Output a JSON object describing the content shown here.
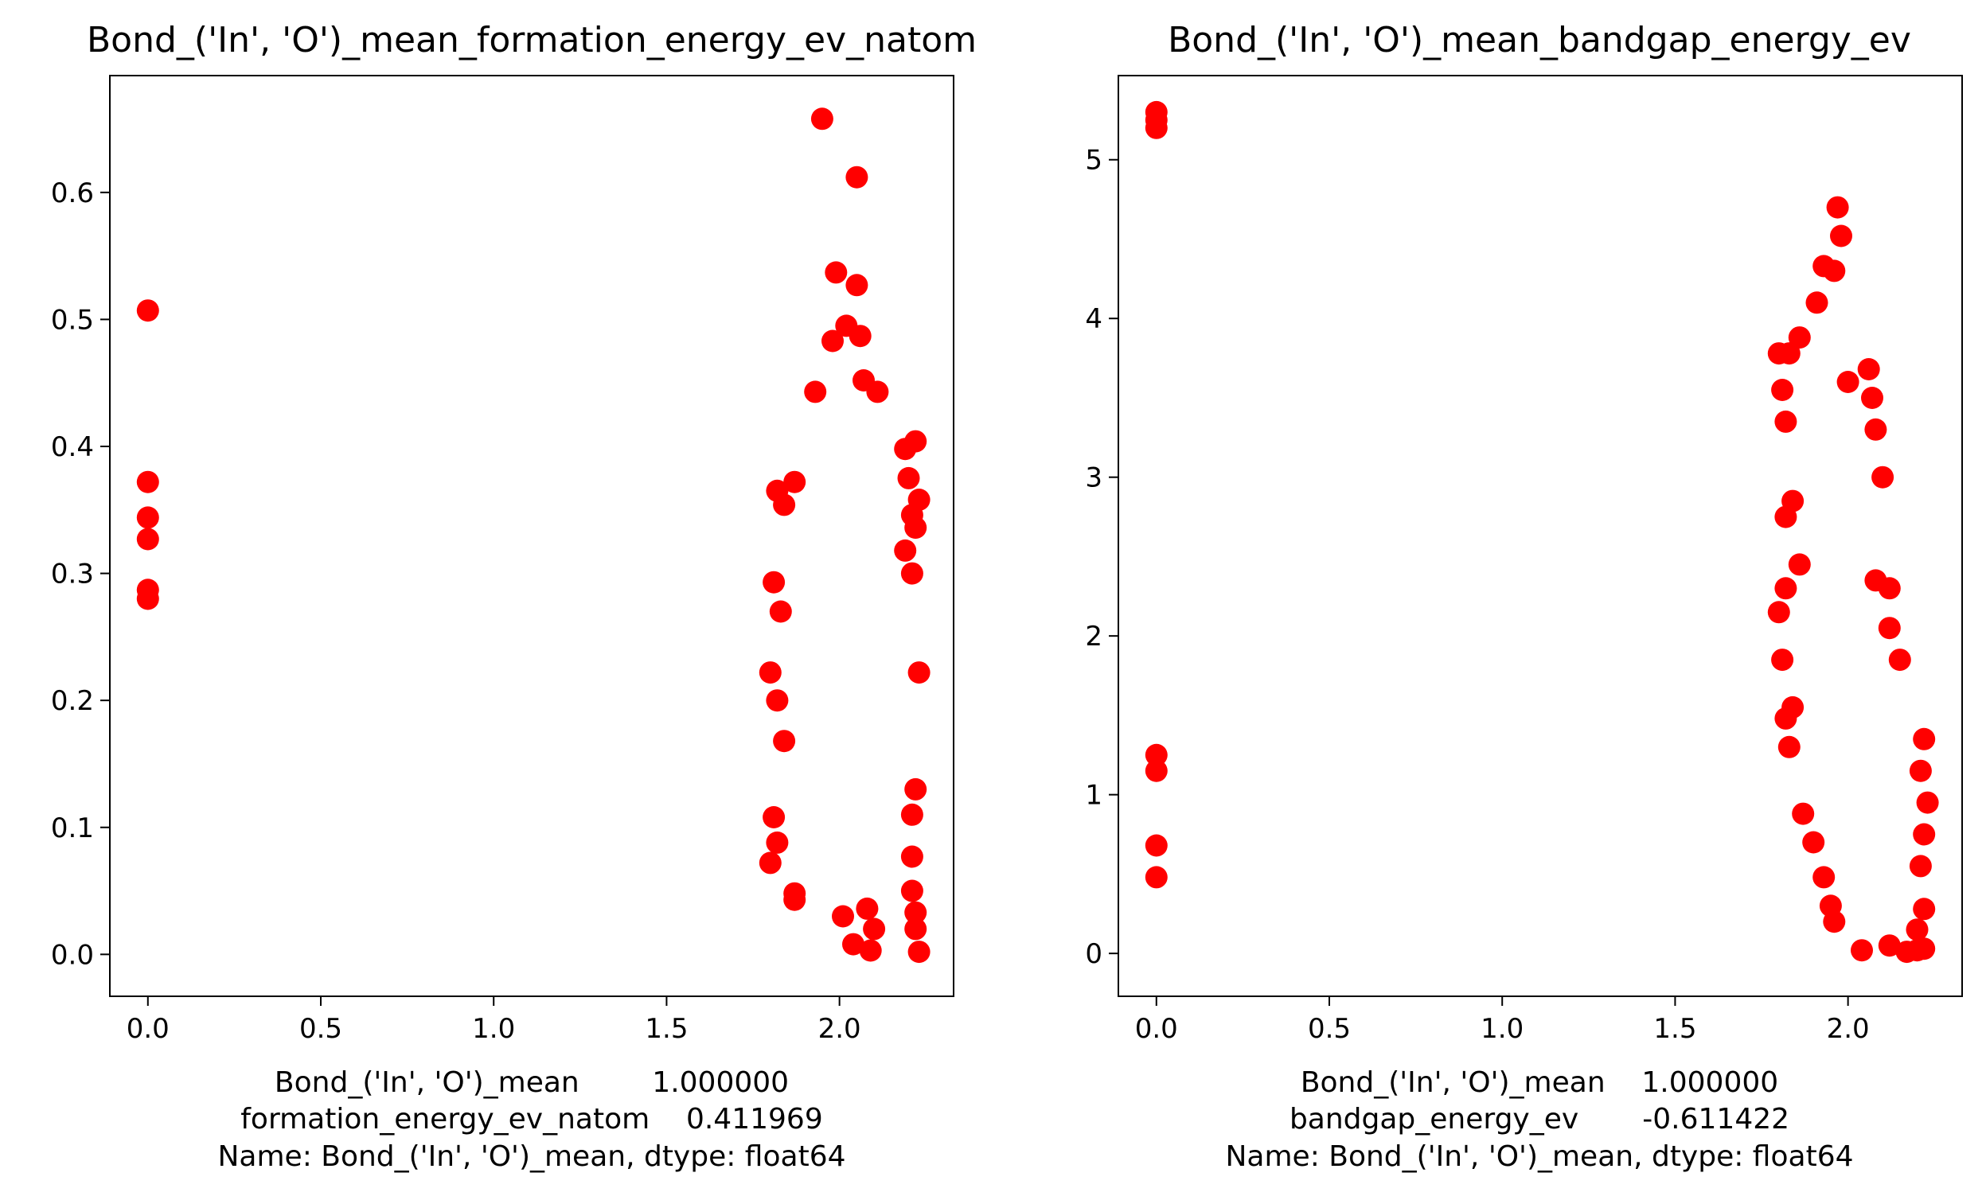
{
  "colors": {
    "marker": "#ff0000",
    "axis": "#000000",
    "background": "#ffffff"
  },
  "chart_data": [
    {
      "type": "scatter",
      "title": "Bond_('In', 'O')_mean_formation_energy_ev_natom",
      "xlabel_lines": [
        "Bond_('In', 'O')_mean        1.000000",
        "formation_energy_ev_natom    0.411969",
        "Name: Bond_('In', 'O')_mean, dtype: float64"
      ],
      "ylabel": "",
      "xlim": [
        -0.11,
        2.33
      ],
      "ylim": [
        -0.033,
        0.692
      ],
      "xticks": [
        0.0,
        0.5,
        1.0,
        1.5,
        2.0
      ],
      "xtick_labels": [
        "0.0",
        "0.5",
        "1.0",
        "1.5",
        "2.0"
      ],
      "yticks": [
        0.0,
        0.1,
        0.2,
        0.3,
        0.4,
        0.5,
        0.6
      ],
      "ytick_labels": [
        "0.0",
        "0.1",
        "0.2",
        "0.3",
        "0.4",
        "0.5",
        "0.6"
      ],
      "grid": false,
      "series": [
        {
          "color": "#ff0000",
          "points": [
            [
              0.0,
              0.507
            ],
            [
              0.0,
              0.372
            ],
            [
              0.0,
              0.344
            ],
            [
              0.0,
              0.327
            ],
            [
              0.0,
              0.287
            ],
            [
              0.0,
              0.28
            ],
            [
              1.95,
              0.658
            ],
            [
              2.05,
              0.612
            ],
            [
              1.99,
              0.537
            ],
            [
              2.05,
              0.527
            ],
            [
              2.06,
              0.487
            ],
            [
              2.02,
              0.495
            ],
            [
              1.98,
              0.483
            ],
            [
              2.07,
              0.452
            ],
            [
              2.11,
              0.443
            ],
            [
              1.93,
              0.443
            ],
            [
              2.22,
              0.404
            ],
            [
              2.19,
              0.398
            ],
            [
              2.2,
              0.375
            ],
            [
              1.82,
              0.365
            ],
            [
              1.84,
              0.354
            ],
            [
              1.87,
              0.372
            ],
            [
              2.23,
              0.358
            ],
            [
              2.21,
              0.346
            ],
            [
              1.81,
              0.293
            ],
            [
              1.83,
              0.27
            ],
            [
              2.22,
              0.336
            ],
            [
              2.19,
              0.318
            ],
            [
              2.21,
              0.3
            ],
            [
              1.8,
              0.222
            ],
            [
              1.82,
              0.2
            ],
            [
              2.23,
              0.222
            ],
            [
              1.84,
              0.168
            ],
            [
              1.81,
              0.108
            ],
            [
              1.82,
              0.088
            ],
            [
              1.8,
              0.072
            ],
            [
              1.87,
              0.048
            ],
            [
              1.87,
              0.043
            ],
            [
              2.21,
              0.077
            ],
            [
              2.21,
              0.05
            ],
            [
              2.22,
              0.033
            ],
            [
              2.22,
              0.02
            ],
            [
              2.23,
              0.002
            ],
            [
              2.04,
              0.008
            ],
            [
              2.09,
              0.003
            ],
            [
              2.01,
              0.03
            ],
            [
              2.08,
              0.036
            ],
            [
              2.1,
              0.02
            ],
            [
              2.21,
              0.11
            ],
            [
              2.22,
              0.13
            ]
          ]
        }
      ]
    },
    {
      "type": "scatter",
      "title": "Bond_('In', 'O')_mean_bandgap_energy_ev",
      "xlabel_lines": [
        "Bond_('In', 'O')_mean    1.000000",
        "bandgap_energy_ev       -0.611422",
        "Name: Bond_('In', 'O')_mean, dtype: float64"
      ],
      "ylabel": "",
      "xlim": [
        -0.11,
        2.33
      ],
      "ylim": [
        -0.27,
        5.53
      ],
      "xticks": [
        0.0,
        0.5,
        1.0,
        1.5,
        2.0
      ],
      "xtick_labels": [
        "0.0",
        "0.5",
        "1.0",
        "1.5",
        "2.0"
      ],
      "yticks": [
        0,
        1,
        2,
        3,
        4,
        5
      ],
      "ytick_labels": [
        "0",
        "1",
        "2",
        "3",
        "4",
        "5"
      ],
      "grid": false,
      "series": [
        {
          "color": "#ff0000",
          "points": [
            [
              0.0,
              5.3
            ],
            [
              0.0,
              5.25
            ],
            [
              0.0,
              5.2
            ],
            [
              0.0,
              1.25
            ],
            [
              0.0,
              1.15
            ],
            [
              0.0,
              0.68
            ],
            [
              0.0,
              0.48
            ],
            [
              1.97,
              4.7
            ],
            [
              1.98,
              4.52
            ],
            [
              1.93,
              4.33
            ],
            [
              1.96,
              4.3
            ],
            [
              1.91,
              4.1
            ],
            [
              1.86,
              3.88
            ],
            [
              1.83,
              3.78
            ],
            [
              1.8,
              3.78
            ],
            [
              2.0,
              3.6
            ],
            [
              2.06,
              3.68
            ],
            [
              2.07,
              3.5
            ],
            [
              2.08,
              3.3
            ],
            [
              2.1,
              3.0
            ],
            [
              1.81,
              3.55
            ],
            [
              1.82,
              3.35
            ],
            [
              1.84,
              2.85
            ],
            [
              1.82,
              2.75
            ],
            [
              1.86,
              2.45
            ],
            [
              1.82,
              2.3
            ],
            [
              1.8,
              2.15
            ],
            [
              1.81,
              1.85
            ],
            [
              1.84,
              1.55
            ],
            [
              1.82,
              1.48
            ],
            [
              1.83,
              1.3
            ],
            [
              1.87,
              0.88
            ],
            [
              1.9,
              0.7
            ],
            [
              1.93,
              0.48
            ],
            [
              1.95,
              0.3
            ],
            [
              1.96,
              0.2
            ],
            [
              2.04,
              0.02
            ],
            [
              2.17,
              0.01
            ],
            [
              2.2,
              0.02
            ],
            [
              2.22,
              0.03
            ],
            [
              2.12,
              0.05
            ],
            [
              2.2,
              0.15
            ],
            [
              2.22,
              0.28
            ],
            [
              2.21,
              0.55
            ],
            [
              2.22,
              0.75
            ],
            [
              2.23,
              0.95
            ],
            [
              2.21,
              1.15
            ],
            [
              2.22,
              1.35
            ],
            [
              2.15,
              1.85
            ],
            [
              2.12,
              2.05
            ],
            [
              2.08,
              2.35
            ],
            [
              2.12,
              2.3
            ]
          ]
        }
      ]
    }
  ]
}
